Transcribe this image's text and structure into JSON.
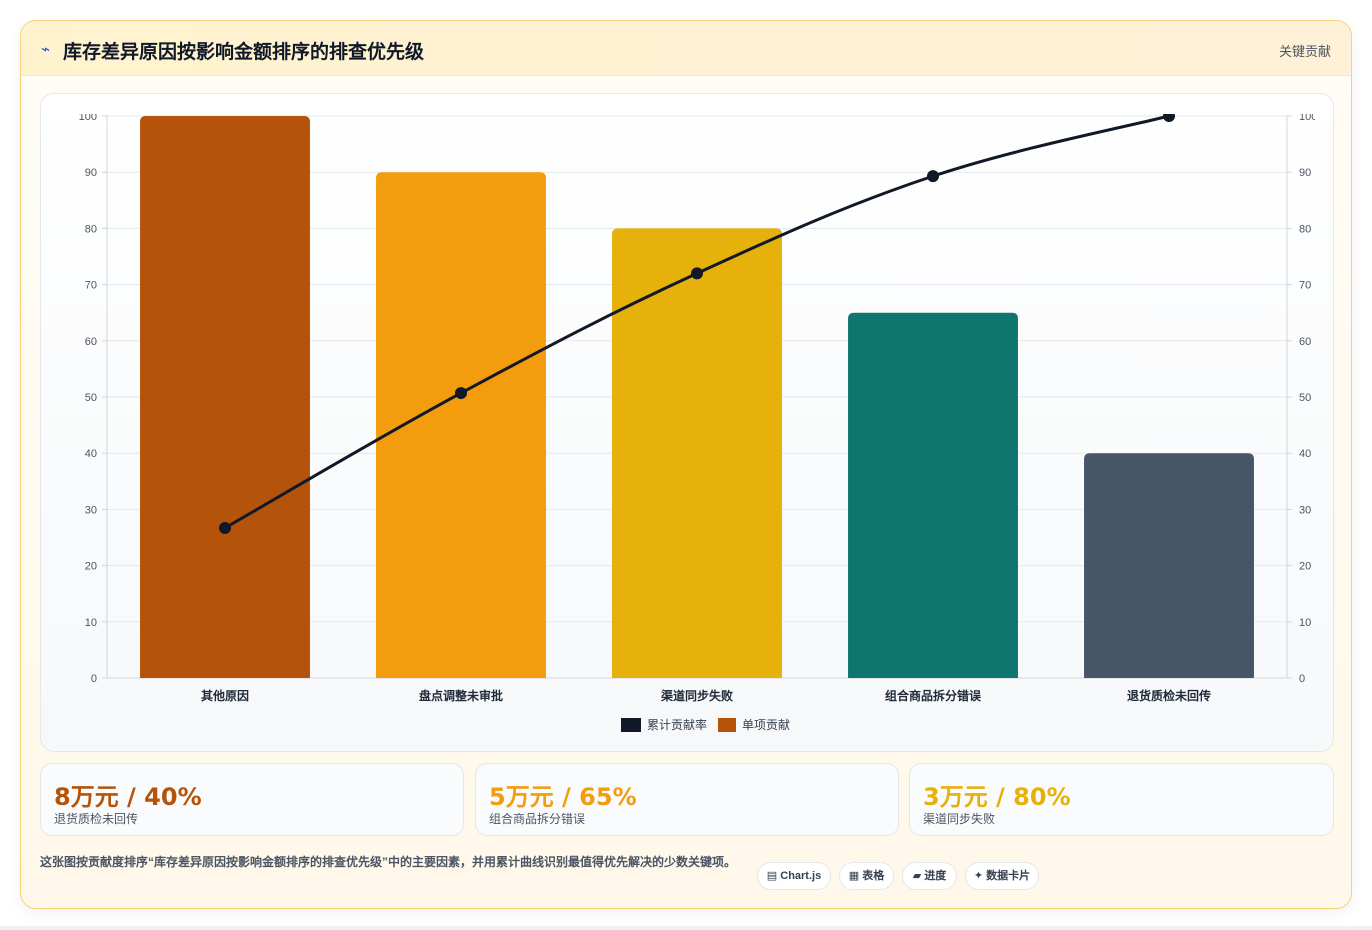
{
  "header": {
    "icon": "⌁",
    "title": "库存差异原因按影响金额排序的排查优先级",
    "tag": "关键贡献"
  },
  "chart_data": {
    "type": "bar",
    "categories": [
      "其他原因",
      "盘点调整未审批",
      "渠道同步失败",
      "组合商品拆分错误",
      "退货质检未回传"
    ],
    "series": [
      {
        "name": "单项贡献",
        "type": "bar",
        "values": [
          100,
          90,
          80,
          65,
          40
        ],
        "colors": [
          "#b45309",
          "#f39c0e",
          "#e6b10a",
          "#0f766e",
          "#475569"
        ]
      },
      {
        "name": "累计贡献率",
        "type": "line",
        "values": [
          26.7,
          50.7,
          72.0,
          89.3,
          100
        ],
        "color": "#111827"
      }
    ],
    "ylim": [
      0,
      100
    ],
    "yticks": [
      0,
      10,
      20,
      30,
      40,
      50,
      60,
      70,
      80,
      90,
      100
    ],
    "y2lim": [
      0,
      100
    ],
    "grid": true,
    "legend_position": "bottom"
  },
  "stats": [
    {
      "value": "8万元 / 40%",
      "label": "退货质检未回传",
      "color": "#b45309"
    },
    {
      "value": "5万元 / 65%",
      "label": "组合商品拆分错误",
      "color": "#f39c0e"
    },
    {
      "value": "3万元 / 80%",
      "label": "渠道同步失败",
      "color": "#e6b10a"
    }
  ],
  "footer": {
    "note": "这张图按贡献度排序“库存差异原因按影响金额排序的排查优先级”中的主要因素，并用累计曲线识别最值得优先解决的少数关键项。",
    "pills": [
      "▤ Chart.js",
      "▦ 表格",
      "▰ 进度",
      "✦ 数据卡片"
    ]
  }
}
